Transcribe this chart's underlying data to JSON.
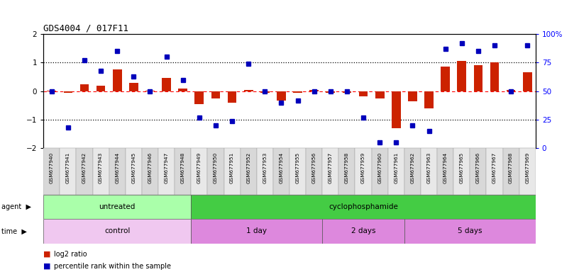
{
  "title": "GDS4004 / 017F11",
  "samples": [
    "GSM677940",
    "GSM677941",
    "GSM677942",
    "GSM677943",
    "GSM677944",
    "GSM677945",
    "GSM677946",
    "GSM677947",
    "GSM677948",
    "GSM677949",
    "GSM677950",
    "GSM677951",
    "GSM677952",
    "GSM677953",
    "GSM677954",
    "GSM677955",
    "GSM677956",
    "GSM677957",
    "GSM677958",
    "GSM677959",
    "GSM677960",
    "GSM677961",
    "GSM677962",
    "GSM677963",
    "GSM677964",
    "GSM677965",
    "GSM677966",
    "GSM677967",
    "GSM677968",
    "GSM677969"
  ],
  "log2_ratio": [
    0.02,
    -0.05,
    0.25,
    0.18,
    0.75,
    0.3,
    0.02,
    0.45,
    0.1,
    -0.45,
    -0.25,
    -0.4,
    0.05,
    -0.05,
    -0.32,
    -0.05,
    0.05,
    -0.05,
    -0.05,
    -0.18,
    -0.25,
    -1.3,
    -0.35,
    -0.6,
    0.85,
    1.05,
    0.9,
    1.0,
    0.05,
    0.65
  ],
  "percentile": [
    50,
    18,
    77,
    68,
    85,
    63,
    50,
    80,
    60,
    27,
    20,
    24,
    74,
    50,
    40,
    42,
    50,
    50,
    50,
    27,
    5,
    5,
    20,
    15,
    87,
    92,
    85,
    90,
    50,
    90
  ],
  "agent_groups": [
    {
      "label": "untreated",
      "start": 0,
      "end": 9,
      "color": "#aaffaa"
    },
    {
      "label": "cyclophosphamide",
      "start": 9,
      "end": 30,
      "color": "#44cc44"
    }
  ],
  "time_groups": [
    {
      "label": "control",
      "start": 0,
      "end": 9,
      "color": "#f0c8f0"
    },
    {
      "label": "1 day",
      "start": 9,
      "end": 17,
      "color": "#dd88dd"
    },
    {
      "label": "2 days",
      "start": 17,
      "end": 22,
      "color": "#dd88dd"
    },
    {
      "label": "5 days",
      "start": 22,
      "end": 30,
      "color": "#dd88dd"
    }
  ],
  "bar_color": "#cc2200",
  "dot_color": "#0000bb",
  "ylim": [
    -2,
    2
  ],
  "y2lim": [
    0,
    100
  ],
  "yticks": [
    -2,
    -1,
    0,
    1,
    2
  ],
  "y2ticks": [
    0,
    25,
    50,
    75,
    100
  ],
  "legend_red": "log2 ratio",
  "legend_blue": "percentile rank within the sample"
}
